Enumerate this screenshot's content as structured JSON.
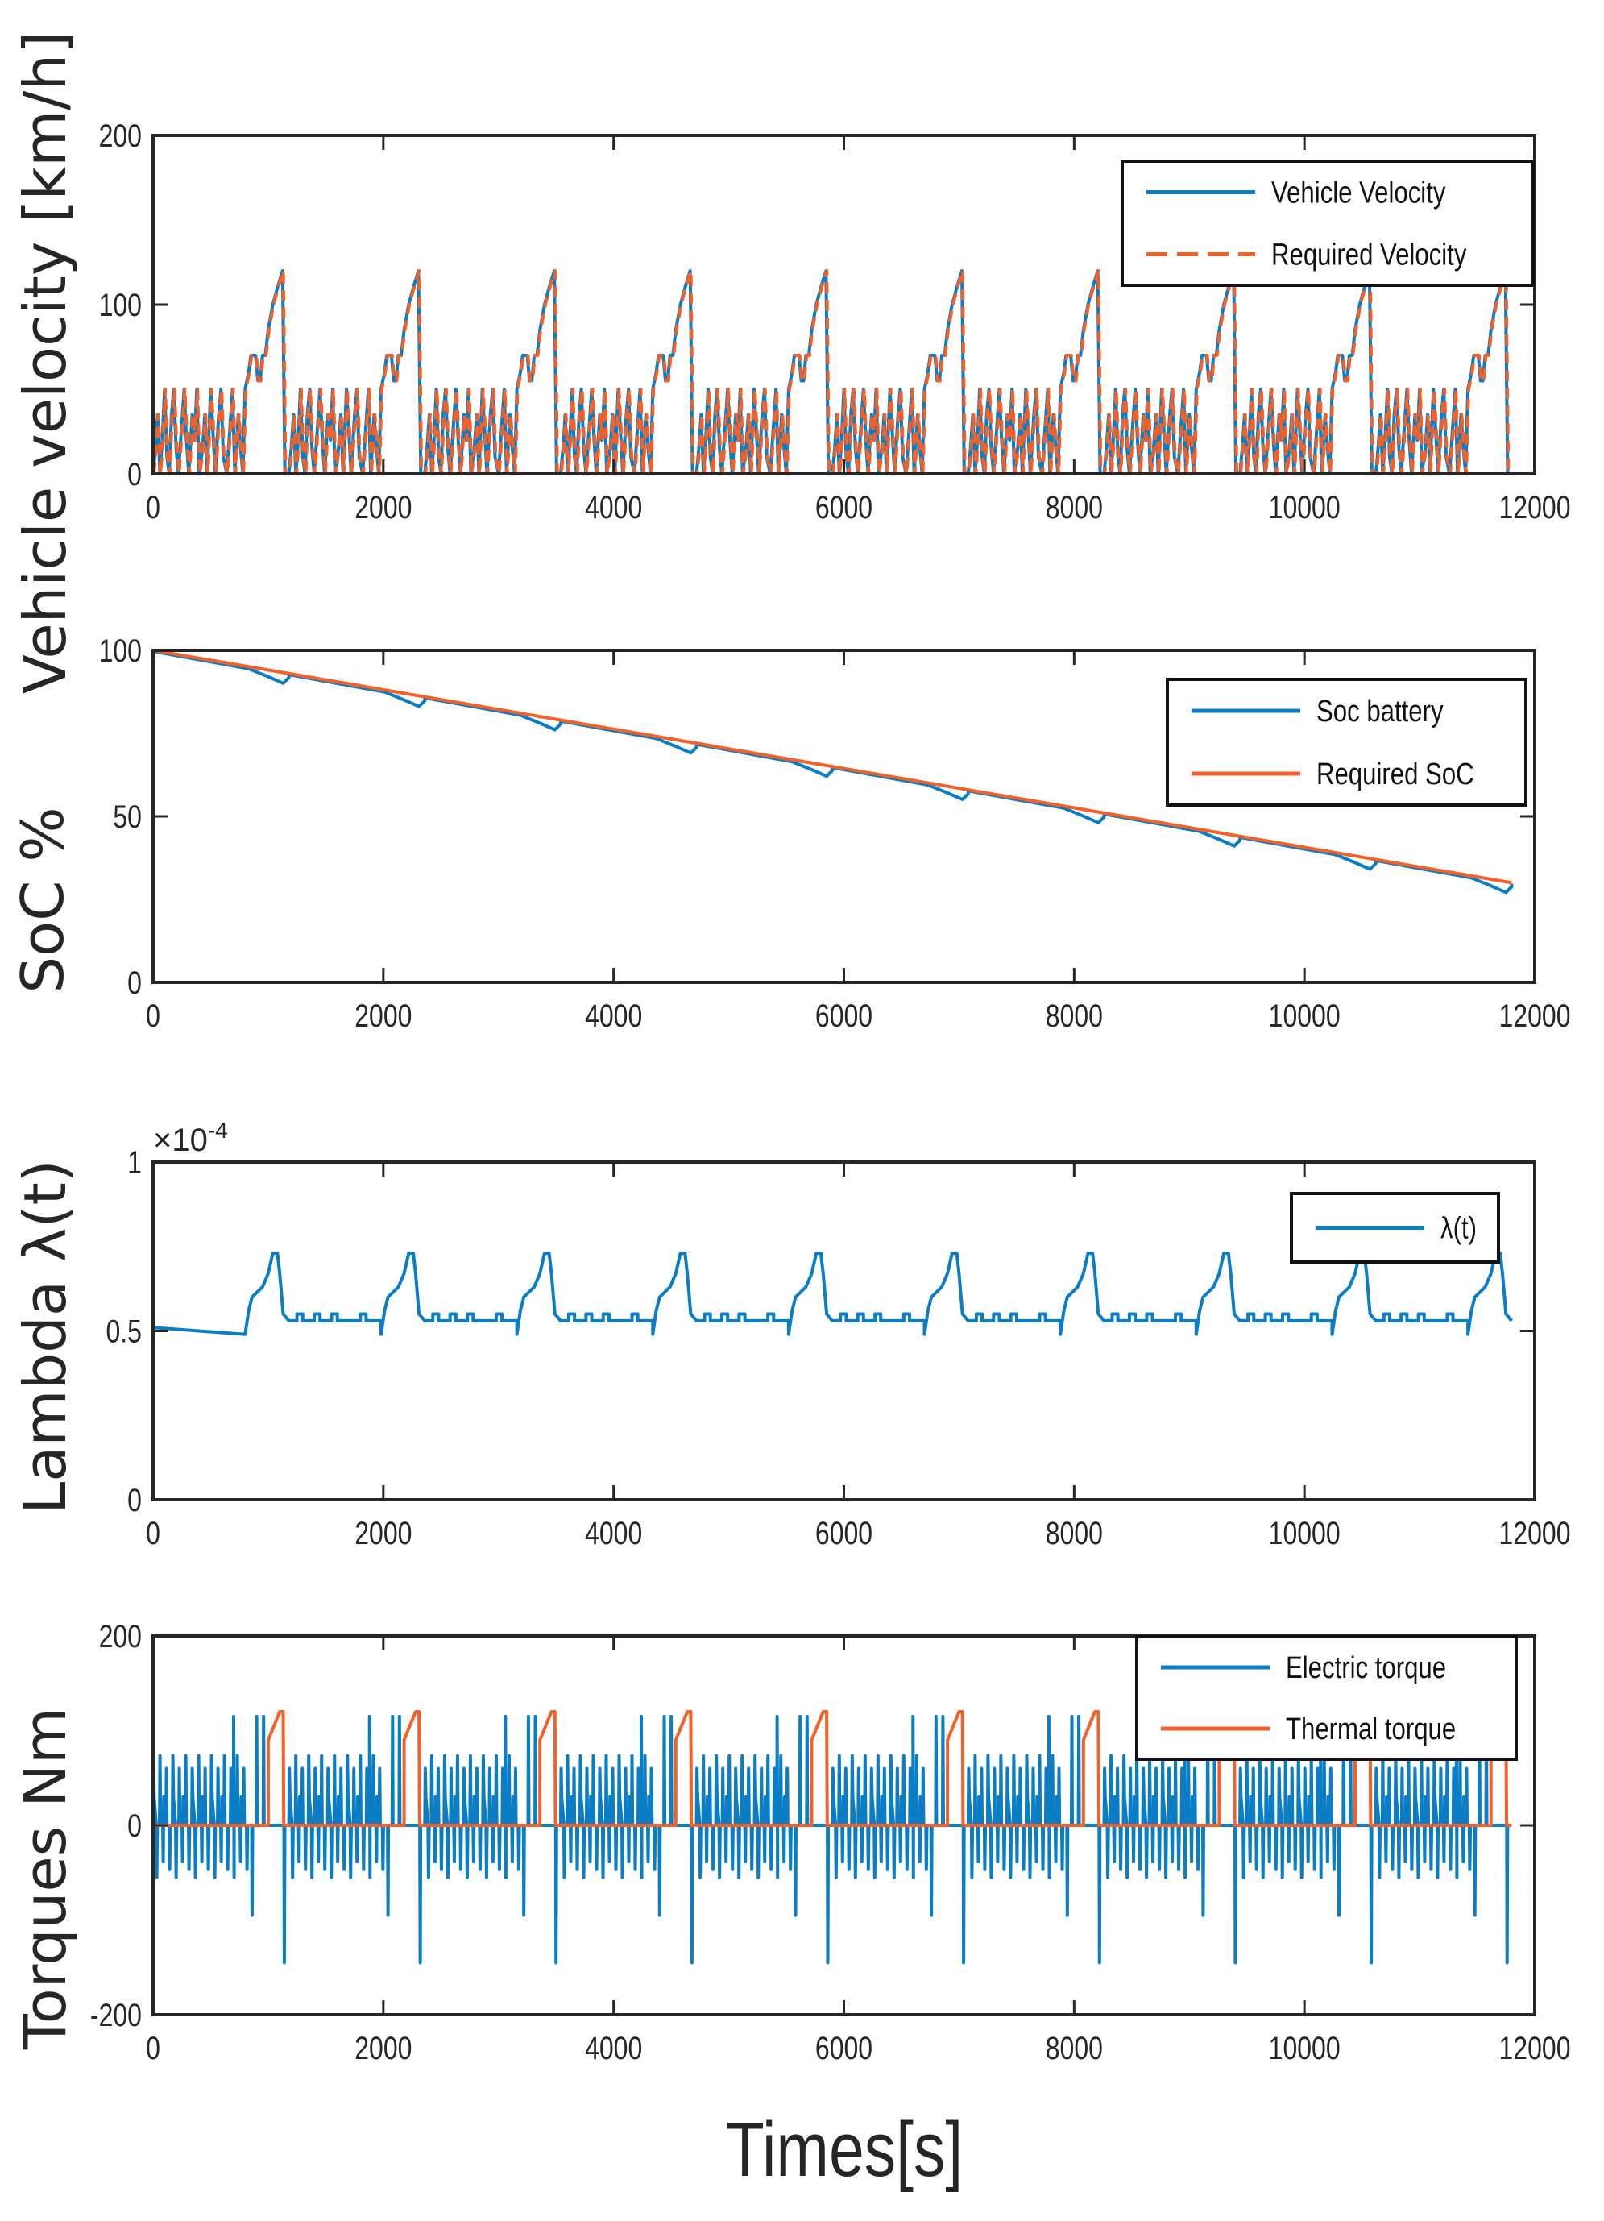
{
  "colors": {
    "blue": "#0A7DC4",
    "orange": "#F2612A",
    "axis": "#262626"
  },
  "xlabel": "Times[s]",
  "chart_data": [
    {
      "type": "line",
      "ylabel": "Vehicle velocity [km/h]",
      "xlim": [
        0,
        12000
      ],
      "ylim": [
        0,
        200
      ],
      "xticks": [
        0,
        2000,
        4000,
        6000,
        8000,
        10000,
        12000
      ],
      "yticks": [
        0,
        100,
        200
      ],
      "legend": {
        "placement": "top-right",
        "entries": [
          "Vehicle Velocity",
          "Required Velocity"
        ]
      },
      "series": [
        {
          "name": "Vehicle Velocity",
          "color": "blue",
          "style": "solid",
          "period": 1180,
          "end": 11800,
          "shift": 0,
          "cycle_profile": [
            [
              0,
              0
            ],
            [
              20,
              15
            ],
            [
              40,
              35
            ],
            [
              60,
              0
            ],
            [
              80,
              20
            ],
            [
              100,
              50
            ],
            [
              120,
              10
            ],
            [
              140,
              0
            ],
            [
              160,
              35
            ],
            [
              180,
              50
            ],
            [
              200,
              15
            ],
            [
              220,
              0
            ],
            [
              250,
              30
            ],
            [
              270,
              50
            ],
            [
              290,
              20
            ],
            [
              310,
              0
            ],
            [
              340,
              35
            ],
            [
              360,
              20
            ],
            [
              380,
              50
            ],
            [
              400,
              0
            ],
            [
              430,
              15
            ],
            [
              450,
              35
            ],
            [
              470,
              0
            ],
            [
              500,
              50
            ],
            [
              520,
              25
            ],
            [
              540,
              0
            ],
            [
              570,
              35
            ],
            [
              590,
              50
            ],
            [
              610,
              10
            ],
            [
              640,
              0
            ],
            [
              670,
              30
            ],
            [
              690,
              50
            ],
            [
              710,
              0
            ],
            [
              740,
              35
            ],
            [
              760,
              15
            ],
            [
              780,
              0
            ],
            [
              800,
              50
            ],
            [
              830,
              60
            ],
            [
              850,
              70
            ],
            [
              890,
              70
            ],
            [
              910,
              55
            ],
            [
              930,
              55
            ],
            [
              950,
              70
            ],
            [
              975,
              70
            ],
            [
              1000,
              85
            ],
            [
              1040,
              100
            ],
            [
              1080,
              110
            ],
            [
              1125,
              120
            ],
            [
              1145,
              0
            ],
            [
              1180,
              0
            ]
          ]
        },
        {
          "name": "Required Velocity",
          "color": "orange",
          "style": "dashed",
          "period": 1180,
          "end": 11800,
          "shift": 6,
          "cycle_profile": [
            [
              0,
              0
            ],
            [
              20,
              15
            ],
            [
              40,
              35
            ],
            [
              60,
              0
            ],
            [
              80,
              20
            ],
            [
              100,
              50
            ],
            [
              120,
              10
            ],
            [
              140,
              0
            ],
            [
              160,
              35
            ],
            [
              180,
              50
            ],
            [
              200,
              15
            ],
            [
              220,
              0
            ],
            [
              250,
              30
            ],
            [
              270,
              50
            ],
            [
              290,
              20
            ],
            [
              310,
              0
            ],
            [
              340,
              35
            ],
            [
              360,
              20
            ],
            [
              380,
              50
            ],
            [
              400,
              0
            ],
            [
              430,
              15
            ],
            [
              450,
              35
            ],
            [
              470,
              0
            ],
            [
              500,
              50
            ],
            [
              520,
              25
            ],
            [
              540,
              0
            ],
            [
              570,
              35
            ],
            [
              590,
              50
            ],
            [
              610,
              10
            ],
            [
              640,
              0
            ],
            [
              670,
              30
            ],
            [
              690,
              50
            ],
            [
              710,
              0
            ],
            [
              740,
              35
            ],
            [
              760,
              15
            ],
            [
              780,
              0
            ],
            [
              800,
              50
            ],
            [
              830,
              60
            ],
            [
              850,
              70
            ],
            [
              890,
              70
            ],
            [
              910,
              55
            ],
            [
              930,
              55
            ],
            [
              950,
              70
            ],
            [
              975,
              70
            ],
            [
              1000,
              85
            ],
            [
              1040,
              100
            ],
            [
              1080,
              110
            ],
            [
              1125,
              120
            ],
            [
              1145,
              0
            ],
            [
              1180,
              0
            ]
          ]
        }
      ]
    },
    {
      "type": "line",
      "ylabel": "SoC %",
      "xlim": [
        0,
        12000
      ],
      "ylim": [
        0,
        100
      ],
      "xticks": [
        0,
        2000,
        4000,
        6000,
        8000,
        10000,
        12000
      ],
      "yticks": [
        0,
        50,
        100
      ],
      "legend": {
        "placement": "top-right",
        "entries": [
          "Soc battery",
          "Required SoC"
        ]
      },
      "series": [
        {
          "name": "Soc battery",
          "color": "blue",
          "style": "solid",
          "start": [
            0,
            0
          ],
          "linear": [
            [
              0,
              100
            ],
            [
              11800,
              30
            ]
          ],
          "period": 1180,
          "end": 11800,
          "cycle_offsets": [
            [
              0,
              -0.3
            ],
            [
              830,
              -0.6
            ],
            [
              1000,
              -2
            ],
            [
              1130,
              -3.2
            ],
            [
              1180,
              -1.2
            ]
          ]
        },
        {
          "name": "Required SoC",
          "color": "orange",
          "style": "solid",
          "start": [
            0,
            0
          ],
          "linear": [
            [
              0,
              100
            ],
            [
              11800,
              30
            ]
          ]
        }
      ]
    },
    {
      "type": "line",
      "ylabel": "Lambda λ(t)",
      "exponent_label": "×10",
      "exponent": "-4",
      "xlim": [
        0,
        12000
      ],
      "ylim": [
        0,
        1
      ],
      "xticks": [
        0,
        2000,
        4000,
        6000,
        8000,
        10000,
        12000
      ],
      "yticks": [
        0,
        0.5,
        1
      ],
      "legend": {
        "placement": "top-right",
        "entries": [
          "λ(t)"
        ]
      },
      "series": [
        {
          "name": "λ(t)",
          "color": "blue",
          "style": "solid",
          "prefix": [
            [
              0,
              0
            ],
            [
              0,
              0.51
            ],
            [
              800,
              0.49
            ]
          ],
          "offset": 800,
          "period": 1180,
          "end": 11800,
          "cycle_profile": [
            [
              0,
              0.49
            ],
            [
              30,
              0.56
            ],
            [
              60,
              0.6
            ],
            [
              150,
              0.63
            ],
            [
              200,
              0.67
            ],
            [
              240,
              0.73
            ],
            [
              280,
              0.73
            ],
            [
              300,
              0.67
            ],
            [
              330,
              0.55
            ],
            [
              380,
              0.53
            ],
            [
              450,
              0.53
            ],
            [
              450,
              0.55
            ],
            [
              500,
              0.55
            ],
            [
              500,
              0.53
            ],
            [
              600,
              0.53
            ],
            [
              600,
              0.55
            ],
            [
              650,
              0.55
            ],
            [
              650,
              0.53
            ],
            [
              750,
              0.53
            ],
            [
              750,
              0.55
            ],
            [
              800,
              0.55
            ],
            [
              800,
              0.53
            ],
            [
              1000,
              0.53
            ],
            [
              1000,
              0.55
            ],
            [
              1050,
              0.55
            ],
            [
              1050,
              0.53
            ],
            [
              1180,
              0.53
            ]
          ]
        }
      ]
    },
    {
      "type": "line",
      "ylabel": "Torques Nm",
      "xlim": [
        0,
        12000
      ],
      "ylim": [
        -200,
        200
      ],
      "xticks": [
        0,
        2000,
        4000,
        6000,
        8000,
        10000,
        12000
      ],
      "yticks": [
        -200,
        0,
        200
      ],
      "legend": {
        "placement": "top-right",
        "entries": [
          "Electric torque",
          "Thermal torque"
        ]
      },
      "series": [
        {
          "name": "Electric torque",
          "color": "blue",
          "style": "solid",
          "period": 1180,
          "end": 11800,
          "spikes": {
            "from": 0,
            "to": 820,
            "step": 28,
            "pos": 80,
            "neg": -55
          },
          "special": [
            [
              700,
              115
            ],
            [
              860,
              -95
            ],
            [
              900,
              115
            ],
            [
              960,
              115
            ],
            [
              1140,
              -145
            ]
          ]
        },
        {
          "name": "Thermal torque",
          "color": "orange",
          "style": "solid",
          "period": 1180,
          "end": 11800,
          "cycle_profile": [
            [
              0,
              0
            ],
            [
              1000,
              0
            ],
            [
              1000,
              90
            ],
            [
              1050,
              105
            ],
            [
              1100,
              120
            ],
            [
              1130,
              120
            ],
            [
              1135,
              0
            ],
            [
              1180,
              0
            ]
          ]
        }
      ]
    }
  ]
}
